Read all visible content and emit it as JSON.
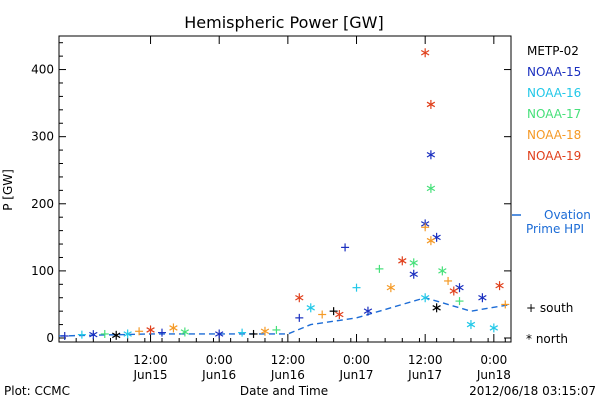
{
  "chart_data": {
    "type": "scatter",
    "title": "Hemispheric Power [GW]",
    "xlabel": "Date and Time",
    "ylabel": "P [GW]",
    "ylim": [
      0,
      450
    ],
    "yticks": [
      0,
      100,
      200,
      300,
      400
    ],
    "xlim": [
      "2012-06-14T20:00",
      "2012-06-18T03:00"
    ],
    "xticks": [
      {
        "t": "2012-06-15T12:00",
        "label1": "12:00",
        "label2": "Jun15"
      },
      {
        "t": "2012-06-16T00:00",
        "label1": "0:00",
        "label2": "Jun16"
      },
      {
        "t": "2012-06-16T12:00",
        "label1": "12:00",
        "label2": "Jun16"
      },
      {
        "t": "2012-06-17T00:00",
        "label1": "0:00",
        "label2": "Jun17"
      },
      {
        "t": "2012-06-17T12:00",
        "label1": "12:00",
        "label2": "Jun17"
      },
      {
        "t": "2012-06-18T00:00",
        "label1": "0:00",
        "label2": "Jun18"
      }
    ],
    "legend_position": "right",
    "series": [
      {
        "name": "METP-02",
        "color": "#000000",
        "points": [
          {
            "t": "2012-06-15T06:00",
            "v": 4,
            "m": "north"
          },
          {
            "t": "2012-06-16T06:00",
            "v": 6,
            "m": "south"
          },
          {
            "t": "2012-06-16T20:00",
            "v": 40,
            "m": "south"
          },
          {
            "t": "2012-06-17T14:00",
            "v": 45,
            "m": "north"
          }
        ]
      },
      {
        "name": "NOAA-15",
        "color": "#1a2fbf",
        "points": [
          {
            "t": "2012-06-14T21:00",
            "v": 3,
            "m": "south"
          },
          {
            "t": "2012-06-15T02:00",
            "v": 5,
            "m": "north"
          },
          {
            "t": "2012-06-15T14:00",
            "v": 8,
            "m": "south"
          },
          {
            "t": "2012-06-16T00:00",
            "v": 6,
            "m": "north"
          },
          {
            "t": "2012-06-16T14:00",
            "v": 30,
            "m": "south"
          },
          {
            "t": "2012-06-16T22:00",
            "v": 135,
            "m": "south"
          },
          {
            "t": "2012-06-17T02:00",
            "v": 40,
            "m": "north"
          },
          {
            "t": "2012-06-17T10:00",
            "v": 95,
            "m": "north"
          },
          {
            "t": "2012-06-17T12:00",
            "v": 170,
            "m": "north"
          },
          {
            "t": "2012-06-17T13:00",
            "v": 273,
            "m": "north"
          },
          {
            "t": "2012-06-17T14:00",
            "v": 150,
            "m": "north"
          },
          {
            "t": "2012-06-17T18:00",
            "v": 75,
            "m": "north"
          },
          {
            "t": "2012-06-17T22:00",
            "v": 60,
            "m": "north"
          }
        ]
      },
      {
        "name": "NOAA-16",
        "color": "#22c8e8",
        "points": [
          {
            "t": "2012-06-15T00:00",
            "v": 5,
            "m": "south"
          },
          {
            "t": "2012-06-15T08:00",
            "v": 6,
            "m": "north"
          },
          {
            "t": "2012-06-16T04:00",
            "v": 8,
            "m": "south"
          },
          {
            "t": "2012-06-16T16:00",
            "v": 45,
            "m": "north"
          },
          {
            "t": "2012-06-17T00:00",
            "v": 75,
            "m": "south"
          },
          {
            "t": "2012-06-17T12:00",
            "v": 60,
            "m": "north"
          },
          {
            "t": "2012-06-17T20:00",
            "v": 20,
            "m": "north"
          },
          {
            "t": "2012-06-18T00:00",
            "v": 15,
            "m": "north"
          }
        ]
      },
      {
        "name": "NOAA-17",
        "color": "#46e07a",
        "points": [
          {
            "t": "2012-06-15T04:00",
            "v": 6,
            "m": "south"
          },
          {
            "t": "2012-06-15T18:00",
            "v": 9,
            "m": "north"
          },
          {
            "t": "2012-06-16T10:00",
            "v": 12,
            "m": "south"
          },
          {
            "t": "2012-06-17T04:00",
            "v": 103,
            "m": "south"
          },
          {
            "t": "2012-06-17T10:00",
            "v": 112,
            "m": "north"
          },
          {
            "t": "2012-06-17T13:00",
            "v": 223,
            "m": "north"
          },
          {
            "t": "2012-06-17T15:00",
            "v": 100,
            "m": "north"
          },
          {
            "t": "2012-06-17T18:00",
            "v": 55,
            "m": "south"
          }
        ]
      },
      {
        "name": "NOAA-18",
        "color": "#f59a26",
        "points": [
          {
            "t": "2012-06-15T10:00",
            "v": 10,
            "m": "south"
          },
          {
            "t": "2012-06-15T16:00",
            "v": 15,
            "m": "north"
          },
          {
            "t": "2012-06-16T08:00",
            "v": 10,
            "m": "north"
          },
          {
            "t": "2012-06-16T18:00",
            "v": 35,
            "m": "south"
          },
          {
            "t": "2012-06-17T06:00",
            "v": 75,
            "m": "north"
          },
          {
            "t": "2012-06-17T12:00",
            "v": 165,
            "m": "south"
          },
          {
            "t": "2012-06-17T13:00",
            "v": 145,
            "m": "north"
          },
          {
            "t": "2012-06-17T16:00",
            "v": 85,
            "m": "south"
          },
          {
            "t": "2012-06-18T02:00",
            "v": 50,
            "m": "south"
          }
        ]
      },
      {
        "name": "NOAA-19",
        "color": "#e0401c",
        "points": [
          {
            "t": "2012-06-15T12:00",
            "v": 12,
            "m": "north"
          },
          {
            "t": "2012-06-16T14:00",
            "v": 60,
            "m": "north"
          },
          {
            "t": "2012-06-16T21:00",
            "v": 35,
            "m": "north"
          },
          {
            "t": "2012-06-17T08:00",
            "v": 115,
            "m": "north"
          },
          {
            "t": "2012-06-17T12:00",
            "v": 425,
            "m": "north"
          },
          {
            "t": "2012-06-17T13:00",
            "v": 348,
            "m": "north"
          },
          {
            "t": "2012-06-17T17:00",
            "v": 70,
            "m": "north"
          },
          {
            "t": "2012-06-18T01:00",
            "v": 78,
            "m": "north"
          }
        ]
      }
    ],
    "ovation": {
      "name_line1": "Ovation",
      "name_line2": "Prime HPI",
      "color": "#1c6cd6",
      "values": [
        {
          "t": "2012-06-14T20:00",
          "v": 3
        },
        {
          "t": "2012-06-15T12:00",
          "v": 6
        },
        {
          "t": "2012-06-16T12:00",
          "v": 6
        },
        {
          "t": "2012-06-16T16:00",
          "v": 20
        },
        {
          "t": "2012-06-17T00:00",
          "v": 30
        },
        {
          "t": "2012-06-17T08:00",
          "v": 50
        },
        {
          "t": "2012-06-17T12:00",
          "v": 60
        },
        {
          "t": "2012-06-17T20:00",
          "v": 40
        },
        {
          "t": "2012-06-18T03:00",
          "v": 50
        }
      ]
    },
    "marker_legend": {
      "south": "+ south",
      "north": "* north"
    }
  },
  "footer": {
    "left": "Plot: CCMC",
    "center": "Date and Time",
    "right": "2012/06/18 03:15:07"
  }
}
